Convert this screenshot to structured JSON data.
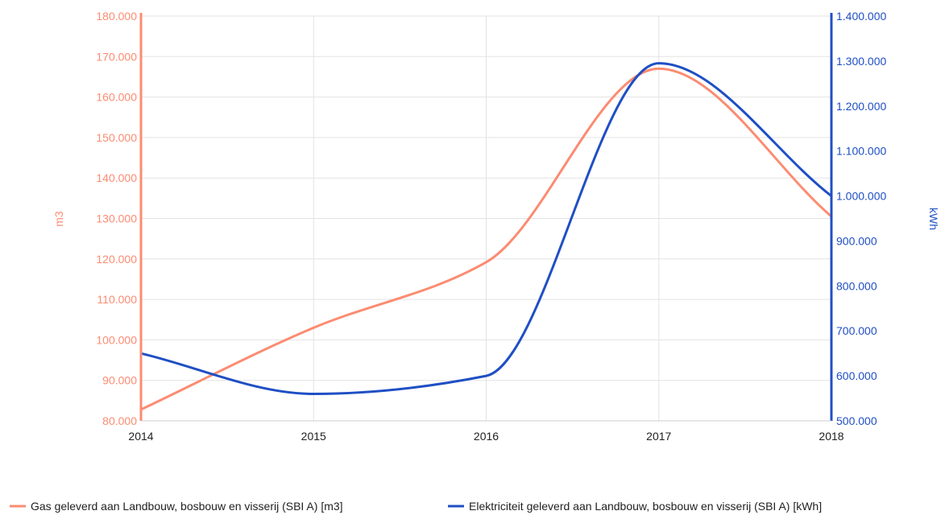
{
  "chart_data": {
    "type": "line",
    "x": [
      2014,
      2015,
      2016,
      2017,
      2018
    ],
    "xlim": [
      2014,
      2018
    ],
    "grid": true,
    "legend_placement": "bottom",
    "y_left": {
      "label": "m3",
      "ylim": [
        80000,
        180000
      ],
      "ticks": [
        "80.000",
        "90.000",
        "100.000",
        "110.000",
        "120.000",
        "130.000",
        "140.000",
        "150.000",
        "160.000",
        "170.000",
        "180.000"
      ],
      "color": "#fb8c72"
    },
    "y_right": {
      "label": "kWh",
      "ylim": [
        500000,
        1400000
      ],
      "ticks": [
        "500.000",
        "600.000",
        "700.000",
        "800.000",
        "900.000",
        "1.000.000",
        "1.100.000",
        "1.200.000",
        "1.300.000",
        "1.400.000"
      ],
      "color": "#1f4fc4"
    },
    "x_ticks": [
      "2014",
      "2015",
      "2016",
      "2017",
      "2018"
    ],
    "series": [
      {
        "name": "Gas geleverd aan Landbouw, bosbouw en visserij (SBI A) [m3]",
        "axis": "left",
        "color": "#fb8c72",
        "values": [
          82800,
          103000,
          119200,
          167000,
          130500
        ]
      },
      {
        "name": "Elektriciteit geleverd aan Landbouw, bosbouw en visserij (SBI A) [kWh]",
        "axis": "right",
        "color": "#1f4fc4",
        "values": [
          650000,
          560000,
          600000,
          1295000,
          1000000
        ]
      }
    ]
  }
}
